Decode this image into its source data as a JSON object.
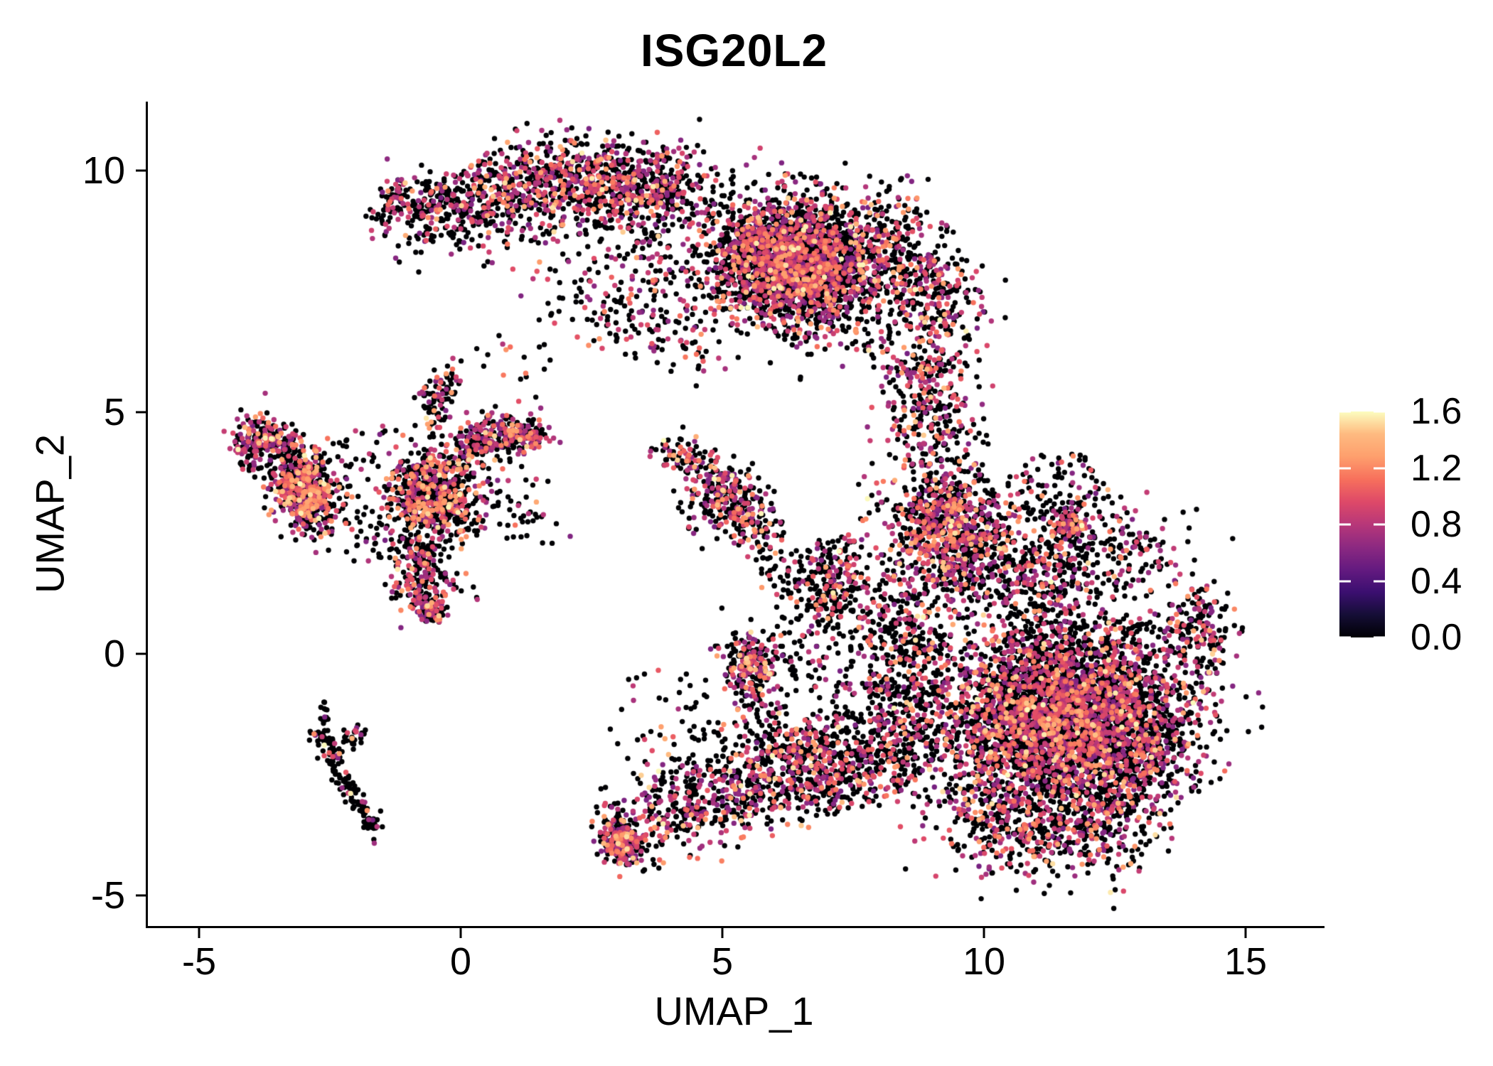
{
  "title": "ISG20L2",
  "axes": {
    "x": {
      "label": "UMAP_1",
      "ticks": [
        {
          "value": -5,
          "label": "-5"
        },
        {
          "value": 0,
          "label": "0"
        },
        {
          "value": 5,
          "label": "5"
        },
        {
          "value": 10,
          "label": "10"
        },
        {
          "value": 15,
          "label": "15"
        }
      ]
    },
    "y": {
      "label": "UMAP_2",
      "ticks": [
        {
          "value": 10,
          "label": "10"
        },
        {
          "value": 5,
          "label": "5"
        },
        {
          "value": 0,
          "label": "0"
        },
        {
          "value": -5,
          "label": "-5"
        }
      ]
    }
  },
  "colorbar": {
    "min": 0.0,
    "max": 1.6,
    "ticks": [
      {
        "value": 0.0,
        "label": "0.0"
      },
      {
        "value": 0.4,
        "label": "0.4"
      },
      {
        "value": 0.8,
        "label": "0.8"
      },
      {
        "value": 1.2,
        "label": "1.2"
      },
      {
        "value": 1.6,
        "label": "1.6"
      }
    ]
  },
  "chart_data": {
    "type": "scatter",
    "title": "ISG20L2",
    "xlabel": "UMAP_1",
    "ylabel": "UMAP_2",
    "xlim": [
      -6.0,
      16.4
    ],
    "ylim": [
      -5.6,
      11.4
    ],
    "x_ticks": [
      -5,
      0,
      5,
      10,
      15
    ],
    "y_ticks": [
      -5,
      0,
      5,
      10
    ],
    "grid": false,
    "legend_position": "right",
    "color_scale": {
      "name": "magma",
      "domain": [
        0.0,
        1.6
      ],
      "stops": [
        [
          0.0,
          "#000004"
        ],
        [
          0.1,
          "#150e36"
        ],
        [
          0.2,
          "#3b0f70"
        ],
        [
          0.3,
          "#641a80"
        ],
        [
          0.4,
          "#8c2981"
        ],
        [
          0.5,
          "#b73779"
        ],
        [
          0.6,
          "#de4968"
        ],
        [
          0.7,
          "#f7705c"
        ],
        [
          0.8,
          "#fe9f6d"
        ],
        [
          0.9,
          "#feba80"
        ],
        [
          1.0,
          "#fcfdbf"
        ]
      ]
    },
    "point_style": {
      "radius_px": 3.7
    },
    "seed": 1337,
    "value_mix": {
      "ranges": {
        "purple": [
          0.55,
          1.0
        ],
        "salmon": [
          1.0,
          1.3
        ],
        "light": [
          1.3,
          1.6
        ]
      },
      "default": {
        "purple": 0.72,
        "salmon": 0.21,
        "light": 0.07
      },
      "hi": {
        "purple": 0.5,
        "salmon": 0.38,
        "light": 0.12
      }
    },
    "clusters": [
      {
        "name": "wing-tip",
        "kind": "blob",
        "center": [
          -1.3,
          9.3
        ],
        "rx": 0.28,
        "ry": 0.55,
        "rot": -20,
        "n": 70,
        "p0": 0.55
      },
      {
        "name": "wing-band-nw",
        "kind": "strip",
        "from": [
          -1.05,
          9.1
        ],
        "to": [
          1.4,
          9.9
        ],
        "sigma": 0.3,
        "n": 380,
        "p0": 0.55
      },
      {
        "name": "wing-band-nw-under",
        "kind": "strip",
        "from": [
          -0.4,
          8.55
        ],
        "to": [
          1.6,
          9.3
        ],
        "sigma": 0.32,
        "n": 130,
        "p0": 0.6
      },
      {
        "name": "wing-top",
        "kind": "strip",
        "from": [
          1.4,
          9.85
        ],
        "to": [
          4.3,
          9.6
        ],
        "sigma": 0.45,
        "n": 900,
        "p0": 0.55
      },
      {
        "name": "wing-main",
        "kind": "blob",
        "center": [
          6.4,
          8.05
        ],
        "rx": 1.55,
        "ry": 1.3,
        "rot": -18,
        "n": 2700,
        "p0": 0.58
      },
      {
        "name": "wing-right-edge",
        "kind": "strip",
        "from": [
          7.9,
          9.15
        ],
        "to": [
          9.35,
          6.7
        ],
        "sigma": 0.5,
        "n": 480,
        "p0": 0.58
      },
      {
        "name": "wing-interior",
        "kind": "strip",
        "from": [
          1.9,
          8.8
        ],
        "to": [
          4.7,
          7.3
        ],
        "sigma": 0.8,
        "n": 280,
        "p0": 0.62
      },
      {
        "name": "wing-under-trail",
        "kind": "strip",
        "from": [
          2.7,
          7.0
        ],
        "to": [
          4.7,
          6.35
        ],
        "sigma": 0.35,
        "n": 90,
        "p0": 0.62
      },
      {
        "name": "wing-neck",
        "kind": "strip",
        "from": [
          8.75,
          6.1
        ],
        "to": [
          9.05,
          4.5
        ],
        "sigma": 0.45,
        "n": 300,
        "p0": 0.6
      },
      {
        "name": "blob-upper-wedge",
        "kind": "blob",
        "center": [
          9.3,
          2.6
        ],
        "rx": 1.1,
        "ry": 1.5,
        "rot": 15,
        "n": 900,
        "p0": 0.55
      },
      {
        "name": "wedge-right-sparse",
        "kind": "strip",
        "from": [
          10.2,
          2.2
        ],
        "to": [
          11.6,
          1.2
        ],
        "sigma": 0.5,
        "n": 220,
        "p0": 0.65
      },
      {
        "name": "blob-upper-clump",
        "kind": "blob",
        "center": [
          11.6,
          2.7
        ],
        "rx": 0.35,
        "ry": 0.4,
        "rot": 0,
        "n": 110,
        "p0": 0.5
      },
      {
        "name": "blob-upper-right-sparse",
        "kind": "blob",
        "center": [
          11.4,
          3.4
        ],
        "rx": 1.0,
        "ry": 0.8,
        "rot": 0,
        "n": 120,
        "p0": 0.68,
        "flat": true
      },
      {
        "name": "blob-main",
        "kind": "blob",
        "center": [
          11.5,
          -1.3
        ],
        "rx": 2.3,
        "ry": 1.95,
        "rot": 8,
        "n": 4300,
        "p0": 0.6
      },
      {
        "name": "blob-top-band",
        "kind": "strip",
        "from": [
          9.5,
          1.7
        ],
        "to": [
          13.4,
          2.2
        ],
        "sigma": 0.45,
        "n": 280,
        "p0": 0.62
      },
      {
        "name": "blob-left-edge",
        "kind": "strip",
        "from": [
          8.55,
          1.0
        ],
        "to": [
          8.45,
          -1.9
        ],
        "sigma": 0.45,
        "n": 420,
        "p0": 0.58
      },
      {
        "name": "blob-right-nose",
        "kind": "strip",
        "from": [
          13.9,
          1.0
        ],
        "to": [
          14.35,
          0.0
        ],
        "sigma": 0.32,
        "n": 160,
        "p0": 0.6
      },
      {
        "name": "blob-bottom-band",
        "kind": "strip",
        "from": [
          9.6,
          -3.5
        ],
        "to": [
          12.7,
          -3.7
        ],
        "sigma": 0.55,
        "n": 480,
        "p0": 0.55
      },
      {
        "name": "blob-bottom-right-edge",
        "kind": "strip",
        "from": [
          13.95,
          -0.8
        ],
        "to": [
          12.6,
          -3.2
        ],
        "sigma": 0.45,
        "n": 300,
        "p0": 0.58
      },
      {
        "name": "mid-sparse-upper",
        "kind": "blob",
        "center": [
          7.35,
          0.7
        ],
        "rx": 1.35,
        "ry": 1.75,
        "rot": 0,
        "n": 280,
        "p0": 0.78,
        "flat": true
      },
      {
        "name": "mid-streak",
        "kind": "strip",
        "from": [
          6.95,
          0.9
        ],
        "to": [
          7.45,
          2.1
        ],
        "sigma": 0.3,
        "n": 150,
        "p0": 0.55
      },
      {
        "name": "mid-bridge-low",
        "kind": "blob",
        "center": [
          7.5,
          -2.1
        ],
        "rx": 1.3,
        "ry": 1.0,
        "rot": -15,
        "n": 260,
        "p0": 0.7,
        "flat": true
      },
      {
        "name": "tail-start-clump",
        "kind": "blob",
        "center": [
          3.05,
          -3.85
        ],
        "rx": 0.4,
        "ry": 0.55,
        "rot": 25,
        "n": 270,
        "p0": 0.45
      },
      {
        "name": "tail-band",
        "kind": "strip",
        "from": [
          3.35,
          -3.55
        ],
        "to": [
          7.9,
          -2.15
        ],
        "sigma": 0.45,
        "n": 720,
        "p0": 0.55
      },
      {
        "name": "tail-band-upper",
        "kind": "strip",
        "from": [
          4.4,
          -2.6
        ],
        "to": [
          6.4,
          -1.9
        ],
        "sigma": 0.5,
        "n": 170,
        "p0": 0.65
      },
      {
        "name": "center-clump",
        "kind": "blob",
        "center": [
          5.55,
          -0.25
        ],
        "rx": 0.55,
        "ry": 0.7,
        "rot": 0,
        "n": 240,
        "p0": 0.5
      },
      {
        "name": "center-clump-tail",
        "kind": "strip",
        "from": [
          5.7,
          -1.1
        ],
        "to": [
          6.5,
          -2.2
        ],
        "sigma": 0.3,
        "n": 90,
        "p0": 0.7
      },
      {
        "name": "low-mid-sparse",
        "kind": "blob",
        "center": [
          3.9,
          -1.3
        ],
        "rx": 1.1,
        "ry": 1.0,
        "rot": 0,
        "n": 40,
        "p0": 0.8,
        "flat": true
      },
      {
        "name": "left-hook",
        "kind": "strip",
        "from": [
          -4.15,
          4.2
        ],
        "to": [
          -3.75,
          4.8
        ],
        "sigma": 0.2,
        "n": 110,
        "p0": 0.5
      },
      {
        "name": "left-hook2",
        "kind": "strip",
        "from": [
          -3.7,
          4.6
        ],
        "to": [
          -3.15,
          4.0
        ],
        "sigma": 0.22,
        "n": 80,
        "p0": 0.55
      },
      {
        "name": "left-blob",
        "kind": "blob",
        "center": [
          -2.95,
          3.3
        ],
        "rx": 0.55,
        "ry": 0.75,
        "rot": 10,
        "n": 500,
        "p0": 0.5,
        "hi": true
      },
      {
        "name": "left-sparse-nw",
        "kind": "blob",
        "center": [
          -3.35,
          3.95
        ],
        "rx": 0.75,
        "ry": 0.6,
        "rot": 0,
        "n": 110,
        "p0": 0.6,
        "flat": true
      },
      {
        "name": "left-mid",
        "kind": "blob",
        "center": [
          -0.55,
          3.25
        ],
        "rx": 0.85,
        "ry": 0.9,
        "rot": 0,
        "n": 620,
        "p0": 0.55,
        "hi": true
      },
      {
        "name": "left-arm-up",
        "kind": "strip",
        "from": [
          -0.6,
          4.6
        ],
        "to": [
          -0.3,
          5.85
        ],
        "sigma": 0.18,
        "n": 90,
        "p0": 0.55
      },
      {
        "name": "left-arm-right",
        "kind": "strip",
        "from": [
          0.1,
          4.4
        ],
        "to": [
          1.45,
          4.55
        ],
        "sigma": 0.22,
        "n": 150,
        "p0": 0.55
      },
      {
        "name": "left-arm-right-clump",
        "kind": "blob",
        "center": [
          1.25,
          4.5
        ],
        "rx": 0.3,
        "ry": 0.26,
        "rot": 0,
        "n": 80,
        "p0": 0.5
      },
      {
        "name": "left-arm-diag",
        "kind": "strip",
        "from": [
          0.0,
          3.95
        ],
        "to": [
          0.85,
          4.85
        ],
        "sigma": 0.2,
        "n": 90,
        "p0": 0.6
      },
      {
        "name": "left-lower-tail",
        "kind": "strip",
        "from": [
          -0.95,
          2.3
        ],
        "to": [
          -0.55,
          1.05
        ],
        "sigma": 0.3,
        "n": 210,
        "p0": 0.5
      },
      {
        "name": "left-lower-clump",
        "kind": "blob",
        "center": [
          -0.6,
          0.95
        ],
        "rx": 0.33,
        "ry": 0.3,
        "rot": 0,
        "n": 80,
        "p0": 0.5
      },
      {
        "name": "left-scatter",
        "kind": "blob",
        "center": [
          -1.3,
          3.3
        ],
        "rx": 2.0,
        "ry": 1.5,
        "rot": 0,
        "n": 210,
        "p0": 0.7,
        "flat": true
      },
      {
        "name": "left-right-trail",
        "kind": "strip",
        "from": [
          0.6,
          3.15
        ],
        "to": [
          1.75,
          2.7
        ],
        "sigma": 0.3,
        "n": 40,
        "p0": 0.7
      },
      {
        "name": "check-arm1",
        "kind": "strip",
        "from": [
          -2.7,
          -1.5
        ],
        "to": [
          -2.15,
          -2.8
        ],
        "sigma": 0.1,
        "n": 70,
        "p0": 0.88
      },
      {
        "name": "check-arm2",
        "kind": "strip",
        "from": [
          -2.15,
          -2.8
        ],
        "to": [
          -1.8,
          -3.3
        ],
        "sigma": 0.09,
        "n": 40,
        "p0": 0.85
      },
      {
        "name": "check-clump",
        "kind": "blob",
        "center": [
          -1.72,
          -3.5
        ],
        "rx": 0.15,
        "ry": 0.15,
        "rot": 0,
        "n": 35,
        "p0": 0.8
      },
      {
        "name": "check-top-dots",
        "kind": "strip",
        "from": [
          -2.62,
          -1.0
        ],
        "to": [
          -2.62,
          -1.5
        ],
        "sigma": 0.06,
        "n": 14,
        "p0": 0.9
      },
      {
        "name": "check-hook",
        "kind": "strip",
        "from": [
          -2.78,
          -1.75
        ],
        "to": [
          -2.6,
          -1.6
        ],
        "sigma": 0.07,
        "n": 12,
        "p0": 0.9
      },
      {
        "name": "check-branch",
        "kind": "strip",
        "from": [
          -2.45,
          -1.95
        ],
        "to": [
          -1.72,
          -1.55
        ],
        "sigma": 0.08,
        "n": 30,
        "p0": 0.8
      },
      {
        "name": "check-below-dot",
        "kind": "blob",
        "center": [
          -1.62,
          -3.85
        ],
        "rx": 0.05,
        "ry": 0.08,
        "rot": 0,
        "n": 2,
        "p0": 0.6
      },
      {
        "name": "central-arm",
        "kind": "strip",
        "from": [
          3.85,
          4.15
        ],
        "to": [
          4.6,
          3.95
        ],
        "sigma": 0.18,
        "n": 70,
        "p0": 0.55,
        "hi": true
      },
      {
        "name": "central-clump",
        "kind": "strip",
        "from": [
          4.8,
          3.6
        ],
        "to": [
          5.7,
          2.6
        ],
        "sigma": 0.3,
        "n": 280,
        "p0": 0.5
      },
      {
        "name": "central-tail",
        "kind": "strip",
        "from": [
          5.75,
          2.4
        ],
        "to": [
          6.25,
          1.35
        ],
        "sigma": 0.25,
        "n": 40,
        "p0": 0.8
      },
      {
        "name": "central-scatter",
        "kind": "blob",
        "center": [
          5.0,
          3.2
        ],
        "rx": 0.95,
        "ry": 0.95,
        "rot": 0,
        "n": 55,
        "p0": 0.75,
        "flat": true
      },
      {
        "name": "iso-upper-mid",
        "kind": "blob",
        "center": [
          0.9,
          6.1
        ],
        "rx": 0.9,
        "ry": 0.5,
        "rot": 0,
        "n": 16,
        "p0": 0.85,
        "flat": true
      },
      {
        "name": "iso-right-top",
        "kind": "blob",
        "center": [
          12.9,
          2.35
        ],
        "rx": 0.55,
        "ry": 0.3,
        "rot": 0,
        "n": 14,
        "p0": 0.8,
        "flat": true
      }
    ]
  }
}
